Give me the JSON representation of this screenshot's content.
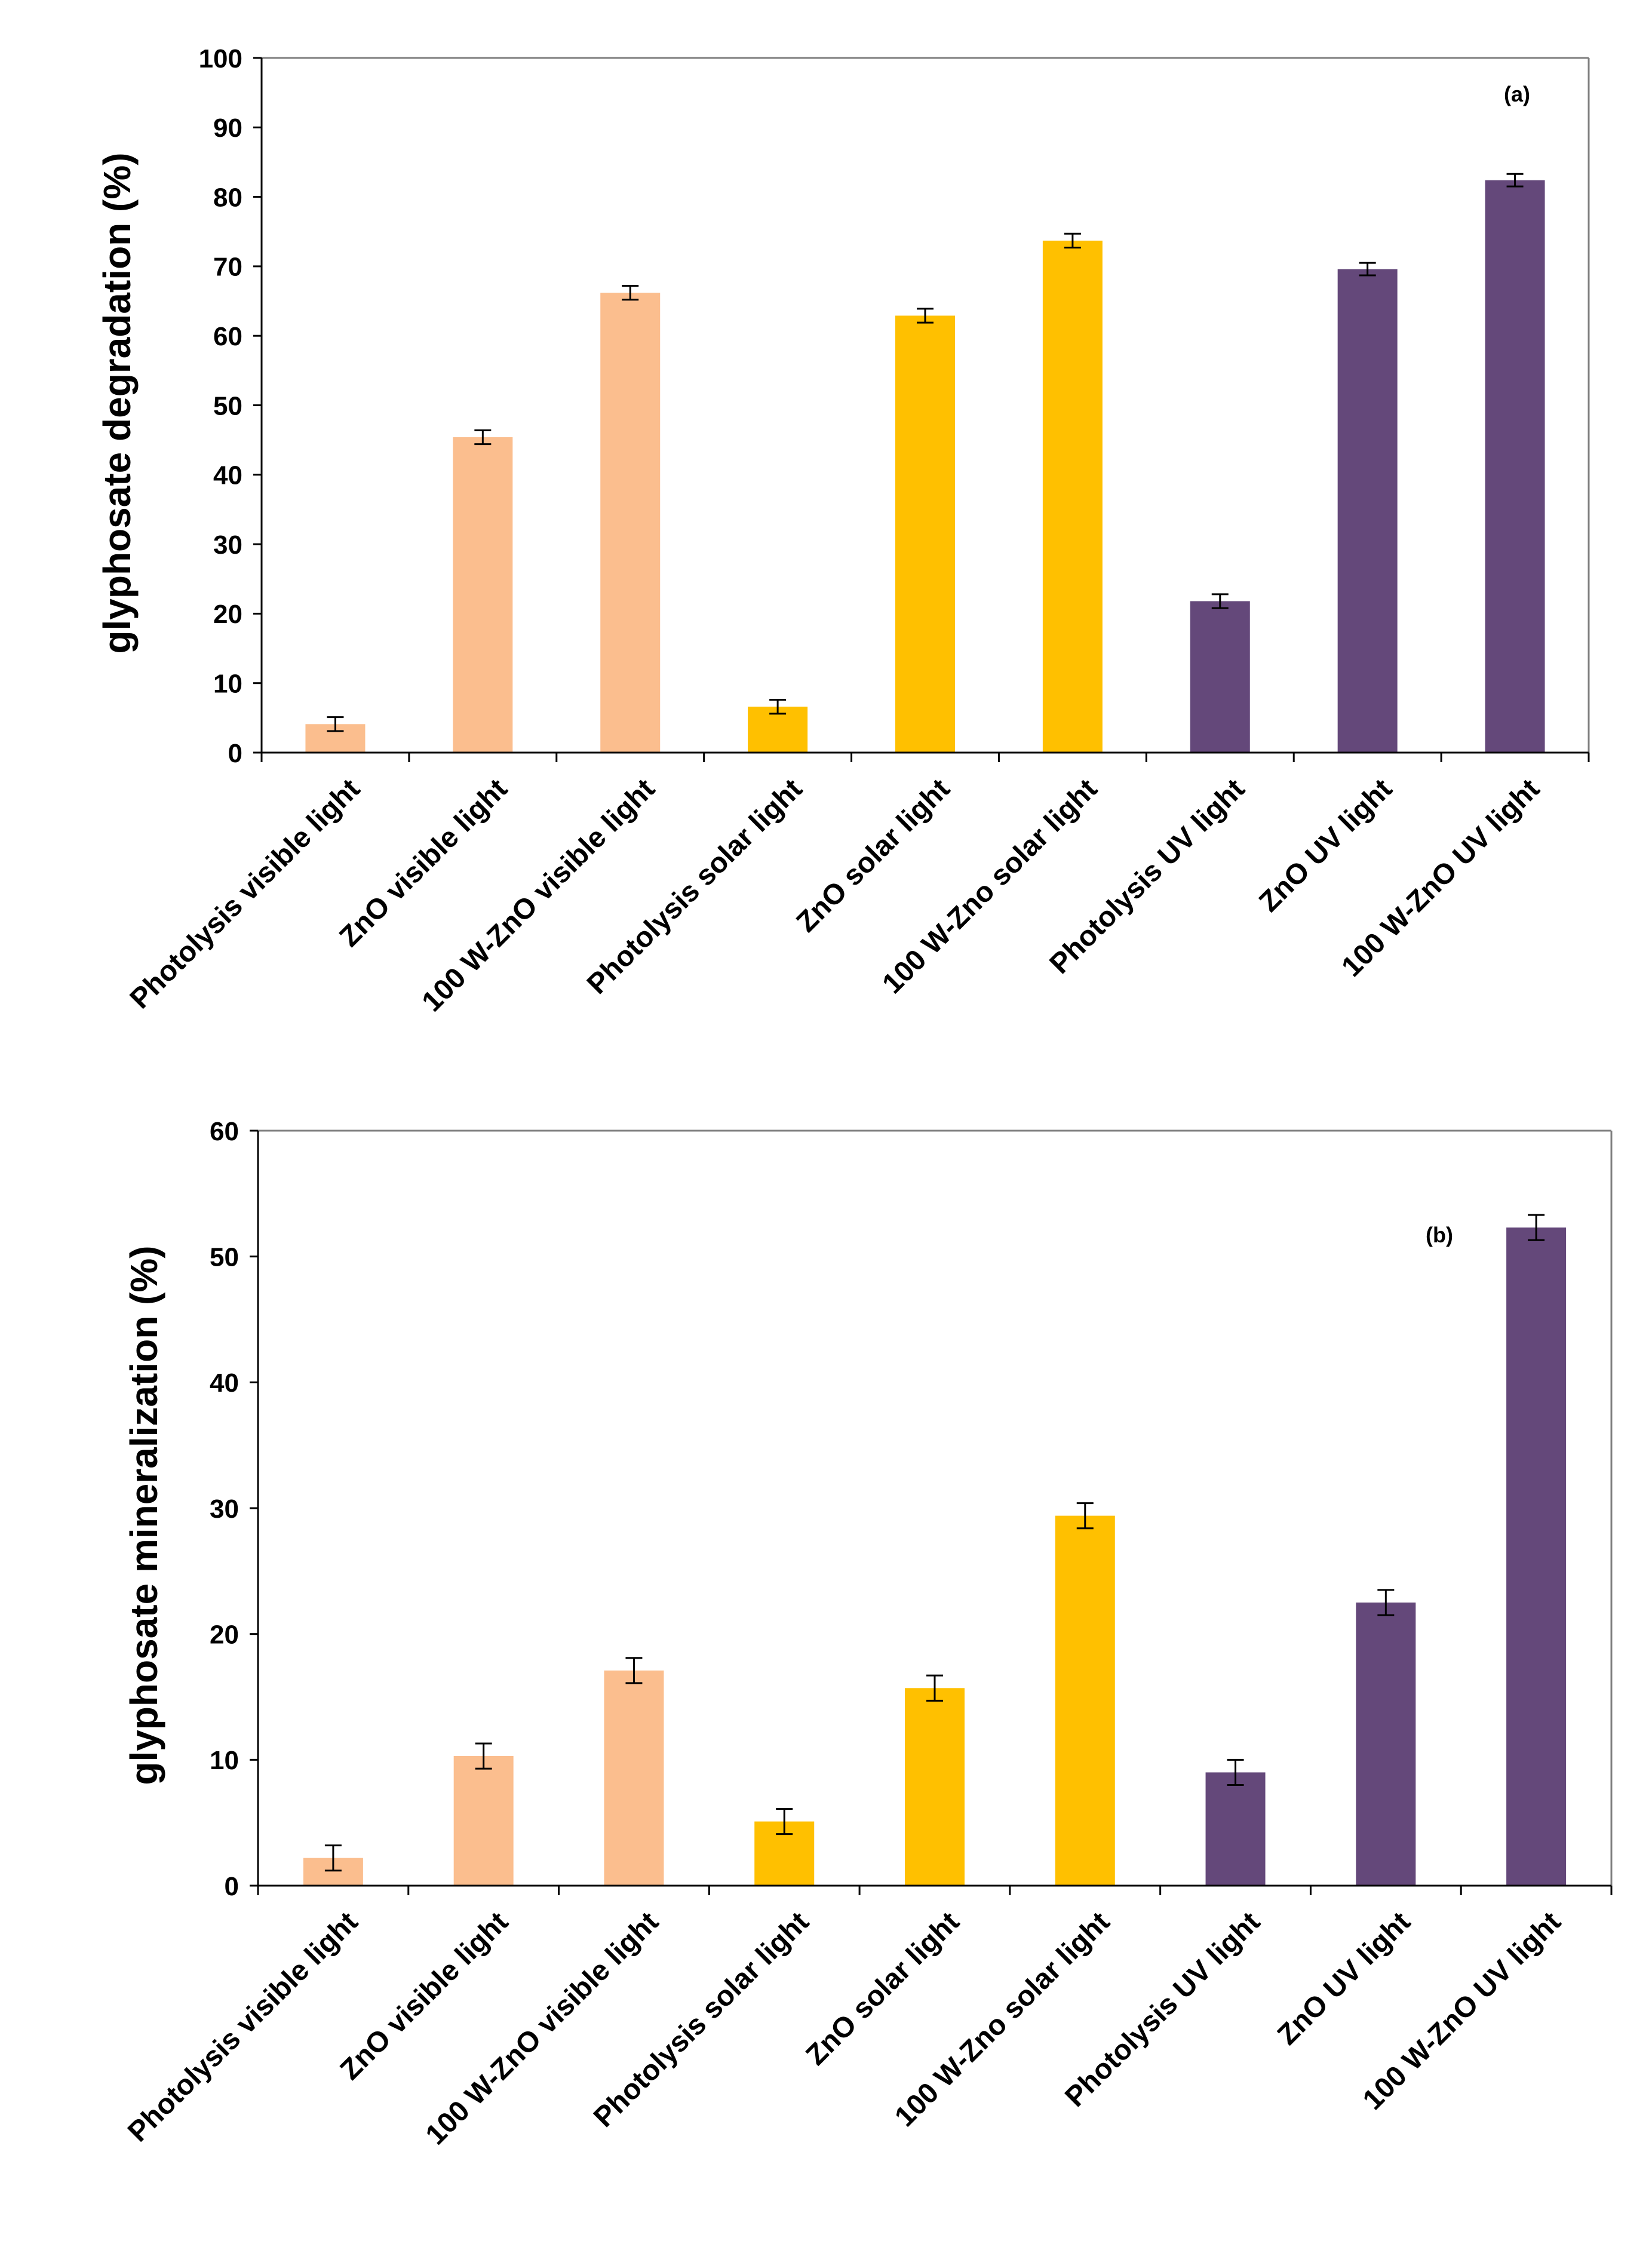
{
  "colors": {
    "visible": "#FBBE8E",
    "solar": "#FFC000",
    "uv": "#64487A",
    "axis": "#000000",
    "frame": "#7F7F7F",
    "background": "#FFFFFF"
  },
  "chart_data": [
    {
      "type": "bar",
      "panel_label": "(a)",
      "title": "",
      "xlabel": "",
      "ylabel": "glyphosate  degradation (%)",
      "ylim": [
        0,
        100
      ],
      "yticks": [
        0,
        10,
        20,
        30,
        40,
        50,
        60,
        70,
        80,
        90,
        100
      ],
      "ytick_labels": [
        "0",
        "10",
        "20",
        "30",
        "40",
        "50",
        "60",
        "70",
        "80",
        "90",
        "100"
      ],
      "grid": false,
      "legend": "none",
      "categories": [
        "Photolysis visible light",
        "ZnO visible light",
        "100 W-ZnO visible light",
        "Photolysis solar light",
        "ZnO solar light",
        "100 W-Zno solar light",
        "Photolysis UV light",
        "ZnO UV light",
        "100 W-ZnO UV light"
      ],
      "values": [
        4.1,
        45.4,
        66.2,
        6.6,
        62.9,
        73.7,
        21.8,
        69.6,
        82.4
      ],
      "errors": [
        1.0,
        1.0,
        1.0,
        1.0,
        1.0,
        1.0,
        1.0,
        0.9,
        0.9
      ],
      "bar_groups": [
        "visible",
        "visible",
        "visible",
        "solar",
        "solar",
        "solar",
        "uv",
        "uv",
        "uv"
      ]
    },
    {
      "type": "bar",
      "panel_label": "(b)",
      "title": "",
      "xlabel": "",
      "ylabel": "glyphosate  mineralization (%)",
      "ylim": [
        0,
        60
      ],
      "yticks": [
        0,
        10,
        20,
        30,
        40,
        50,
        60
      ],
      "ytick_labels": [
        "0",
        "10",
        "20",
        "30",
        "40",
        "50",
        "60"
      ],
      "grid": false,
      "legend": "none",
      "categories": [
        "Photolysis visible light",
        "ZnO visible light",
        "100 W-ZnO visible light",
        "Photolysis solar light",
        "ZnO solar light",
        "100 W-Zno solar light",
        "Photolysis UV light",
        "ZnO UV light",
        "100 W-ZnO UV light"
      ],
      "values": [
        2.2,
        10.3,
        17.1,
        5.1,
        15.7,
        29.4,
        9.0,
        22.5,
        52.3
      ],
      "errors": [
        1.0,
        1.0,
        1.0,
        1.0,
        1.0,
        1.0,
        1.0,
        1.0,
        1.0
      ],
      "bar_groups": [
        "visible",
        "visible",
        "visible",
        "solar",
        "solar",
        "solar",
        "uv",
        "uv",
        "uv"
      ]
    }
  ]
}
